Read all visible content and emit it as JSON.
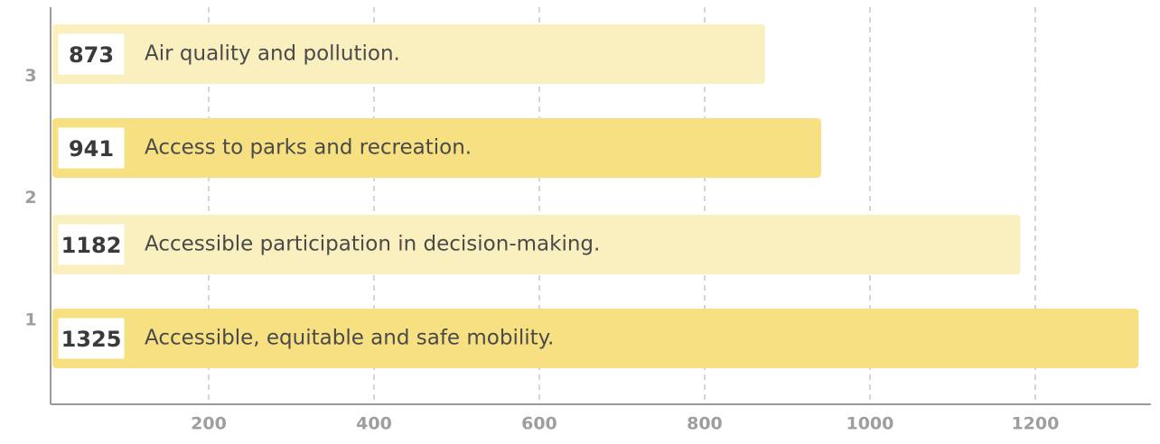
{
  "chart_data": {
    "type": "bar",
    "orientation": "horizontal",
    "categories": [
      "Air quality and pollution.",
      "Access to parks and recreation.",
      "Accessible participation in decision-making.",
      "Accessible, equitable and safe mobility."
    ],
    "values": [
      873,
      941,
      1182,
      1325
    ],
    "colors": [
      "#faf0bf",
      "#f6e082",
      "#faf0bf",
      "#f6e082"
    ],
    "xlim": [
      0,
      1340
    ],
    "xticks": [
      200,
      400,
      600,
      800,
      1000,
      1200
    ],
    "ylim": [
      0,
      3.55
    ],
    "yticks": [
      1,
      2,
      3
    ],
    "grid": true
  }
}
